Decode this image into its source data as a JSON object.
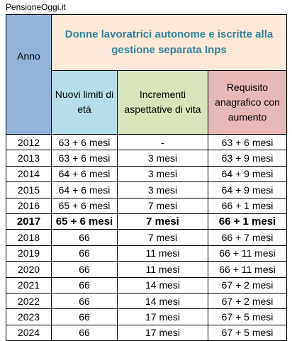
{
  "header": {
    "site": "PensioneOggi.it"
  },
  "table": {
    "title": "Donne lavoratrici autonome e iscritte alla gestione separata Inps",
    "columns": [
      "Anno",
      "Nuovi limiti di età",
      "Incrementi aspettative di vita",
      "Requisito anagrafico con aumento"
    ],
    "rows": [
      [
        "2012",
        "63 + 6 mesi",
        "-",
        "63 + 6 mesi"
      ],
      [
        "2013",
        "63 + 6 mesi",
        "3 mesi",
        "63 + 9 mesi"
      ],
      [
        "2014",
        "64 + 6 mesi",
        "3 mesi",
        "64 + 9 mesi"
      ],
      [
        "2015",
        "64 + 6 mesi",
        "3 mesi",
        "64 + 9 mesi"
      ],
      [
        "2016",
        "65 + 6 mesi",
        "7 mesi",
        "66 + 1 mesi"
      ],
      [
        "2017",
        "65 + 6 mesi",
        "7 mesi",
        "66 + 1 mesi"
      ],
      [
        "2018",
        "66",
        "7 mesi",
        "66 + 7 mesi"
      ],
      [
        "2019",
        "66",
        "11 mesi",
        "66 + 11 mesi"
      ],
      [
        "2020",
        "66",
        "11 mesi",
        "66 + 11 mesi"
      ],
      [
        "2021",
        "66",
        "14 mesi",
        "67 + 2 mesi"
      ],
      [
        "2022",
        "66",
        "14 mesi",
        "67 + 2 mesi"
      ],
      [
        "2023",
        "66",
        "17 mesi",
        "67 + 5 mesi"
      ],
      [
        "2024",
        "66",
        "17 mesi",
        "67 + 5 mesi"
      ]
    ]
  }
}
